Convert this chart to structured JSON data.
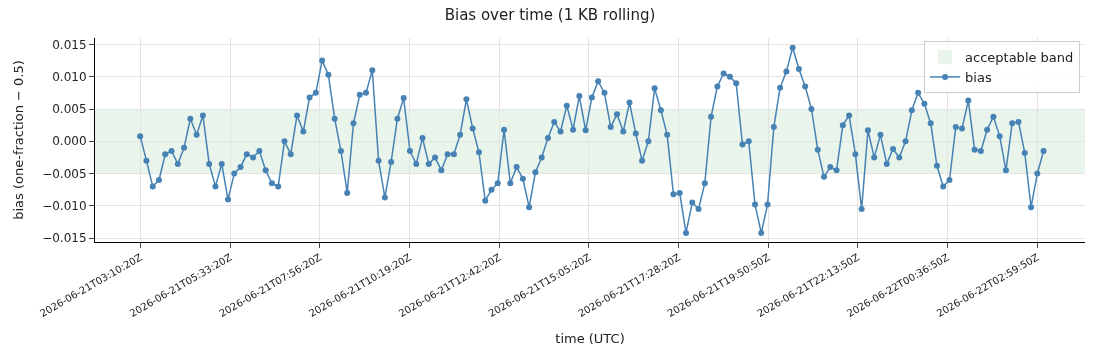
{
  "chart_data": {
    "type": "line",
    "title": "Bias over time (1 KB rolling)",
    "xlabel": "time (UTC)",
    "ylabel": "bias (one-fraction − 0.5)",
    "x": [
      "2026-06-21T03:10",
      "2026-06-21T03:20",
      "2026-06-21T03:30",
      "2026-06-21T03:40",
      "2026-06-21T03:50",
      "2026-06-21T04:00",
      "2026-06-21T04:10",
      "2026-06-21T04:20",
      "2026-06-21T04:30",
      "2026-06-21T04:40",
      "2026-06-21T04:50",
      "2026-06-21T05:00",
      "2026-06-21T05:10",
      "2026-06-21T05:20",
      "2026-06-21T05:30",
      "2026-06-21T05:40",
      "2026-06-21T05:50",
      "2026-06-21T06:00",
      "2026-06-21T06:10",
      "2026-06-21T06:20",
      "2026-06-21T06:30",
      "2026-06-21T06:40",
      "2026-06-21T06:50",
      "2026-06-21T07:00",
      "2026-06-21T07:10",
      "2026-06-21T07:20",
      "2026-06-21T07:30",
      "2026-06-21T07:40",
      "2026-06-21T07:50",
      "2026-06-21T08:00",
      "2026-06-21T08:10",
      "2026-06-21T08:20",
      "2026-06-21T08:30",
      "2026-06-21T08:40",
      "2026-06-21T08:50",
      "2026-06-21T09:00",
      "2026-06-21T09:10",
      "2026-06-21T09:20",
      "2026-06-21T09:30",
      "2026-06-21T09:40",
      "2026-06-21T09:50",
      "2026-06-21T10:00",
      "2026-06-21T10:10",
      "2026-06-21T10:20",
      "2026-06-21T10:30",
      "2026-06-21T10:40",
      "2026-06-21T10:50",
      "2026-06-21T11:00",
      "2026-06-21T11:10",
      "2026-06-21T11:20",
      "2026-06-21T11:30",
      "2026-06-21T11:40",
      "2026-06-21T11:50",
      "2026-06-21T12:00",
      "2026-06-21T12:10",
      "2026-06-21T12:20",
      "2026-06-21T12:30",
      "2026-06-21T12:40",
      "2026-06-21T12:50",
      "2026-06-21T13:00",
      "2026-06-21T13:10",
      "2026-06-21T13:20",
      "2026-06-21T13:30",
      "2026-06-21T13:40",
      "2026-06-21T13:50",
      "2026-06-21T14:00",
      "2026-06-21T14:10",
      "2026-06-21T14:20",
      "2026-06-21T14:30",
      "2026-06-21T14:40",
      "2026-06-21T14:50",
      "2026-06-21T15:00",
      "2026-06-21T15:10",
      "2026-06-21T15:20",
      "2026-06-21T15:30",
      "2026-06-21T15:40",
      "2026-06-21T15:50",
      "2026-06-21T16:00",
      "2026-06-21T16:10",
      "2026-06-21T16:20",
      "2026-06-21T16:30",
      "2026-06-21T16:40",
      "2026-06-21T16:50",
      "2026-06-21T17:00",
      "2026-06-21T17:10",
      "2026-06-21T17:20",
      "2026-06-21T17:30",
      "2026-06-21T17:40",
      "2026-06-21T17:50",
      "2026-06-21T18:00",
      "2026-06-21T18:10",
      "2026-06-21T18:20",
      "2026-06-21T18:30",
      "2026-06-21T18:40",
      "2026-06-21T18:50",
      "2026-06-21T19:00",
      "2026-06-21T19:10",
      "2026-06-21T19:20",
      "2026-06-21T19:30",
      "2026-06-21T19:40",
      "2026-06-21T19:50",
      "2026-06-21T20:00",
      "2026-06-21T20:10",
      "2026-06-21T20:20",
      "2026-06-21T20:30",
      "2026-06-21T20:40",
      "2026-06-21T20:50",
      "2026-06-21T21:00",
      "2026-06-21T21:10",
      "2026-06-21T21:20",
      "2026-06-21T21:30",
      "2026-06-21T21:40",
      "2026-06-21T21:50",
      "2026-06-21T22:00",
      "2026-06-21T22:10",
      "2026-06-21T22:20",
      "2026-06-21T22:30",
      "2026-06-21T22:40",
      "2026-06-21T22:50",
      "2026-06-21T23:00",
      "2026-06-21T23:10",
      "2026-06-21T23:20",
      "2026-06-21T23:30",
      "2026-06-21T23:40",
      "2026-06-21T23:50",
      "2026-06-22T00:00",
      "2026-06-22T00:10",
      "2026-06-22T00:20",
      "2026-06-22T00:30",
      "2026-06-22T00:40",
      "2026-06-22T00:50",
      "2026-06-22T01:00",
      "2026-06-22T01:10",
      "2026-06-22T01:20",
      "2026-06-22T01:30",
      "2026-06-22T01:40",
      "2026-06-22T01:50",
      "2026-06-22T02:00",
      "2026-06-22T02:10",
      "2026-06-22T02:20",
      "2026-06-22T02:30",
      "2026-06-22T02:40",
      "2026-06-22T02:50",
      "2026-06-22T03:00",
      "2026-06-22T03:10"
    ],
    "series": [
      {
        "name": "bias",
        "color": "#4682b4",
        "values": [
          0.0008,
          -0.003,
          -0.007,
          -0.006,
          -0.002,
          -0.0015,
          -0.0035,
          -0.001,
          0.0035,
          0.001,
          0.004,
          -0.0035,
          -0.007,
          -0.0035,
          -0.009,
          -0.005,
          -0.004,
          -0.002,
          -0.0025,
          -0.0015,
          -0.0045,
          -0.0065,
          -0.007,
          0.0,
          -0.002,
          0.004,
          0.0015,
          0.0068,
          0.0075,
          0.0125,
          0.0103,
          0.0035,
          -0.0015,
          -0.008,
          0.0028,
          0.0072,
          0.0075,
          0.011,
          -0.003,
          -0.0087,
          -0.0032,
          0.0035,
          0.0067,
          -0.0015,
          -0.0035,
          0.0005,
          -0.0035,
          -0.0025,
          -0.0045,
          -0.002,
          -0.002,
          0.001,
          0.0065,
          0.002,
          -0.0017,
          -0.0092,
          -0.0075,
          -0.0065,
          0.0018,
          -0.0065,
          -0.004,
          -0.0058,
          -0.0102,
          -0.0048,
          -0.0025,
          0.0005,
          0.003,
          0.0015,
          0.0055,
          0.0018,
          0.007,
          0.0017,
          0.0068,
          0.0093,
          0.0075,
          0.0022,
          0.0042,
          0.0015,
          0.006,
          0.0012,
          -0.003,
          0.0,
          0.0082,
          0.0048,
          0.001,
          -0.0082,
          -0.008,
          -0.0142,
          -0.0095,
          -0.0105,
          -0.0065,
          0.0038,
          0.0085,
          0.0105,
          0.01,
          0.009,
          -0.0005,
          0.0,
          -0.0098,
          -0.0142,
          -0.0098,
          0.0022,
          0.0083,
          0.0108,
          0.0145,
          0.0112,
          0.0085,
          0.005,
          -0.0013,
          -0.0055,
          -0.004,
          -0.0045,
          0.0025,
          0.004,
          -0.002,
          -0.0105,
          0.0017,
          -0.0025,
          0.001,
          -0.0035,
          -0.0012,
          -0.0025,
          0.0,
          0.0048,
          0.0075,
          0.0058,
          0.0028,
          -0.0038,
          -0.007,
          -0.006,
          0.0022,
          0.002,
          0.0063,
          -0.0013,
          -0.0015,
          0.0018,
          0.0038,
          0.0008,
          -0.0045,
          0.0028,
          0.003,
          -0.0018,
          -0.0102,
          -0.005,
          -0.0015
        ]
      }
    ],
    "bands": [
      {
        "axis": "y",
        "from": -0.005,
        "to": 0.005,
        "label": "acceptable band",
        "color": "#e9f4ea"
      }
    ],
    "xlim": [
      "2026-06-21T01:58",
      "2026-06-22T04:16"
    ],
    "xticks": [
      {
        "value": "2026-06-21T03:10:20",
        "label": "2026-06-21T03:10:20Z"
      },
      {
        "value": "2026-06-21T05:33:20",
        "label": "2026-06-21T05:33:20Z"
      },
      {
        "value": "2026-06-21T07:56:20",
        "label": "2026-06-21T07:56:20Z"
      },
      {
        "value": "2026-06-21T10:19:20",
        "label": "2026-06-21T10:19:20Z"
      },
      {
        "value": "2026-06-21T12:42:20",
        "label": "2026-06-21T12:42:20Z"
      },
      {
        "value": "2026-06-21T15:05:20",
        "label": "2026-06-21T15:05:20Z"
      },
      {
        "value": "2026-06-21T17:28:20",
        "label": "2026-06-21T17:28:20Z"
      },
      {
        "value": "2026-06-21T19:50:50",
        "label": "2026-06-21T19:50:50Z"
      },
      {
        "value": "2026-06-21T22:13:50",
        "label": "2026-06-21T22:13:50Z"
      },
      {
        "value": "2026-06-22T00:36:50",
        "label": "2026-06-22T00:36:50Z"
      },
      {
        "value": "2026-06-22T02:59:50",
        "label": "2026-06-22T02:59:50Z"
      }
    ],
    "ylim": [
      -0.0156,
      0.016
    ],
    "yticks": [
      {
        "value": -0.015,
        "label": "−0.015"
      },
      {
        "value": -0.01,
        "label": "−0.010"
      },
      {
        "value": -0.005,
        "label": "−0.005"
      },
      {
        "value": 0,
        "label": "0.000"
      },
      {
        "value": 0.005,
        "label": "0.005"
      },
      {
        "value": 0.01,
        "label": "0.010"
      },
      {
        "value": 0.015,
        "label": "0.015"
      }
    ],
    "grid": true,
    "legend": "top right",
    "marker": "circle",
    "line_style": "solid"
  }
}
